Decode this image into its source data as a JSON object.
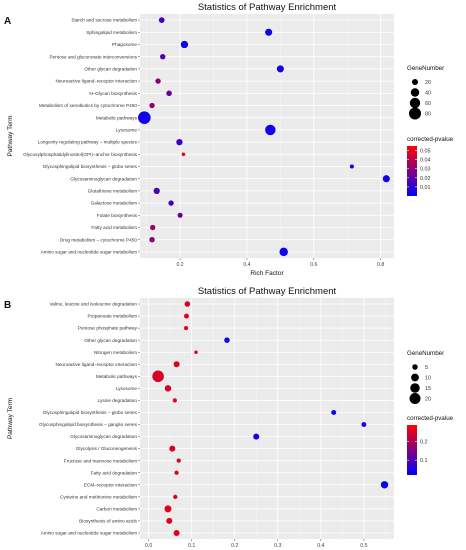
{
  "chart_data": [
    {
      "panel_label": "A",
      "type": "scatter",
      "title": "Statistics of Pathway Enrichment",
      "xlabel": "Rich Factor",
      "ylabel": "Pathway Term",
      "xlim": [
        0.08,
        0.84
      ],
      "xticks": [
        0.2,
        0.4,
        0.6,
        0.8
      ],
      "xtick_labels": [
        "0.2",
        "0.4",
        "0.6",
        "0.8"
      ],
      "grid": true,
      "size_legend": {
        "title": "GeneNumber",
        "values": [
          20,
          40,
          60,
          80
        ],
        "labels": [
          "20",
          "40",
          "60",
          "80"
        ]
      },
      "color_legend": {
        "title": "corrected-pvalue",
        "min": 0,
        "max": 0.055,
        "ticks": [
          0.05,
          0.04,
          0.03,
          0.02,
          0.01
        ],
        "labels": [
          "0.05",
          "0.04",
          "0.03",
          "0.02",
          "0.01"
        ],
        "low_color": "#0000ff",
        "high_color": "#ff0000"
      },
      "categories": [
        "Starch and sucrose metabolism",
        "Sphingolipid metabolism",
        "Phagosome",
        "Pentose and glucuronate interconversions",
        "Other glycan degradation",
        "Neuroactive ligand–receptor interaction",
        "N–Glycan biosynthesis",
        "Metabolism of xenobiotics by cytochrome P450",
        "Metabolic pathways",
        "Lysosome",
        "Longevity regulating pathway – multiple species",
        "Glycosylphosphatidylinositol(GPI)–anchor biosynthesis",
        "Glycosphingolipid biosynthesis – globo series",
        "Glycosaminoglycan degradation",
        "Glutathione metabolism",
        "Galactose metabolism",
        "Folate biosynthesis",
        "Fatty acid metabolism",
        "Drug metabolism – cytochrome P450",
        "Amino sugar and nucleotide sugar metabolism"
      ],
      "points": [
        {
          "x": 0.145,
          "gene": 18,
          "p": 0.015
        },
        {
          "x": 0.465,
          "gene": 28,
          "p": 0.003
        },
        {
          "x": 0.213,
          "gene": 30,
          "p": 0.004
        },
        {
          "x": 0.148,
          "gene": 16,
          "p": 0.018
        },
        {
          "x": 0.5,
          "gene": 28,
          "p": 0.004
        },
        {
          "x": 0.134,
          "gene": 16,
          "p": 0.03
        },
        {
          "x": 0.167,
          "gene": 17,
          "p": 0.022
        },
        {
          "x": 0.116,
          "gene": 16,
          "p": 0.032
        },
        {
          "x": 0.093,
          "gene": 88,
          "p": 0.004
        },
        {
          "x": 0.47,
          "gene": 60,
          "p": 0.003
        },
        {
          "x": 0.198,
          "gene": 22,
          "p": 0.012
        },
        {
          "x": 0.21,
          "gene": 7,
          "p": 0.052
        },
        {
          "x": 0.714,
          "gene": 9,
          "p": 0.007
        },
        {
          "x": 0.817,
          "gene": 28,
          "p": 0.004
        },
        {
          "x": 0.13,
          "gene": 22,
          "p": 0.016
        },
        {
          "x": 0.173,
          "gene": 16,
          "p": 0.015
        },
        {
          "x": 0.2,
          "gene": 14,
          "p": 0.022
        },
        {
          "x": 0.118,
          "gene": 16,
          "p": 0.035
        },
        {
          "x": 0.116,
          "gene": 16,
          "p": 0.03
        },
        {
          "x": 0.51,
          "gene": 40,
          "p": 0.003
        }
      ]
    },
    {
      "panel_label": "B",
      "type": "scatter",
      "title": "Statistics of Pathway Enrichment",
      "xlabel": "Rich Factor",
      "ylabel": "Pathway Term",
      "xlim": [
        -0.02,
        0.57
      ],
      "xticks": [
        0.0,
        0.1,
        0.2,
        0.3,
        0.4,
        0.5
      ],
      "xtick_labels": [
        "0.0",
        "0.1",
        "0.2",
        "0.3",
        "0.4",
        "0.5"
      ],
      "grid": true,
      "size_legend": {
        "title": "GeneNumber",
        "values": [
          5,
          10,
          15,
          20
        ],
        "labels": [
          "5",
          "10",
          "15",
          "20"
        ]
      },
      "color_legend": {
        "title": "corrected-pvalue",
        "min": 0.02,
        "max": 0.29,
        "ticks": [
          0.2,
          0.1
        ],
        "labels": [
          "0.2",
          "0.1"
        ],
        "low_color": "#0000ff",
        "high_color": "#ff0000"
      },
      "categories": [
        "Valine, leucine and isoleucine degradation",
        "Propanoate metabolism",
        "Pentose phosphate pathway",
        "Other glycan degradation",
        "Nitrogen metabolism",
        "Neuroactive ligand–receptor interaction",
        "Metabolic pathways",
        "Lysosome",
        "Lysine degradation",
        "Glycosphingolipid biosynthesis – globo series",
        "Glycosphingolipid biosynthesis – ganglio series",
        "Glycosaminoglycan degradation",
        "Glycolysis / Gluconeogenesis",
        "Fructose and mannose metabolism",
        "Fatty acid degradation",
        "ECM–receptor interaction",
        "Cysteine and methionine metabolism",
        "Carbon metabolism",
        "Biosynthesis of amino acids",
        "Amino sugar and nucleotide sugar metabolism"
      ],
      "points": [
        {
          "x": 0.09,
          "gene": 5,
          "p": 0.25
        },
        {
          "x": 0.088,
          "gene": 4,
          "p": 0.26
        },
        {
          "x": 0.087,
          "gene": 3,
          "p": 0.27
        },
        {
          "x": 0.182,
          "gene": 5,
          "p": 0.04
        },
        {
          "x": 0.11,
          "gene": 2,
          "p": 0.26
        },
        {
          "x": 0.065,
          "gene": 6,
          "p": 0.26
        },
        {
          "x": 0.022,
          "gene": 22,
          "p": 0.25
        },
        {
          "x": 0.045,
          "gene": 7,
          "p": 0.25
        },
        {
          "x": 0.061,
          "gene": 3,
          "p": 0.26
        },
        {
          "x": 0.43,
          "gene": 4,
          "p": 0.04
        },
        {
          "x": 0.5,
          "gene": 4,
          "p": 0.04
        },
        {
          "x": 0.25,
          "gene": 6,
          "p": 0.04
        },
        {
          "x": 0.055,
          "gene": 6,
          "p": 0.25
        },
        {
          "x": 0.07,
          "gene": 3,
          "p": 0.26
        },
        {
          "x": 0.065,
          "gene": 3,
          "p": 0.26
        },
        {
          "x": 0.548,
          "gene": 9,
          "p": 0.03
        },
        {
          "x": 0.062,
          "gene": 3,
          "p": 0.26
        },
        {
          "x": 0.045,
          "gene": 8,
          "p": 0.26
        },
        {
          "x": 0.048,
          "gene": 6,
          "p": 0.26
        },
        {
          "x": 0.065,
          "gene": 6,
          "p": 0.26
        }
      ]
    }
  ]
}
